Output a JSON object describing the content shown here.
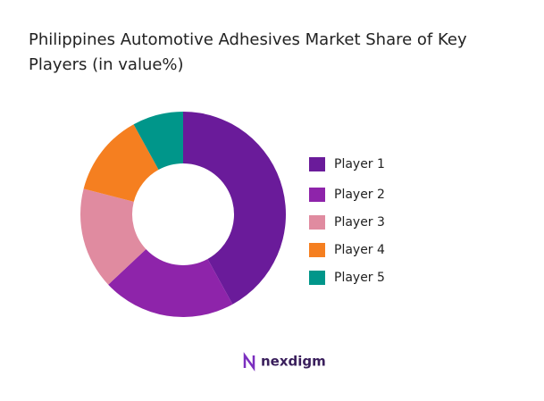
{
  "chart_data": {
    "type": "donut",
    "title_lines": [
      "Philippines Automotive Adhesives Market Share of Key",
      "Players (in value%)"
    ],
    "categories": [
      "Player 1",
      "Player 2",
      "Player 3",
      "Player 4",
      "Player 5"
    ],
    "values": [
      42,
      21,
      16,
      13,
      8
    ],
    "colors": [
      "#6a1b9a",
      "#8e24aa",
      "#e08ba0",
      "#f57f20",
      "#00968a"
    ],
    "legend": "right"
  },
  "logo": "nexdigm"
}
